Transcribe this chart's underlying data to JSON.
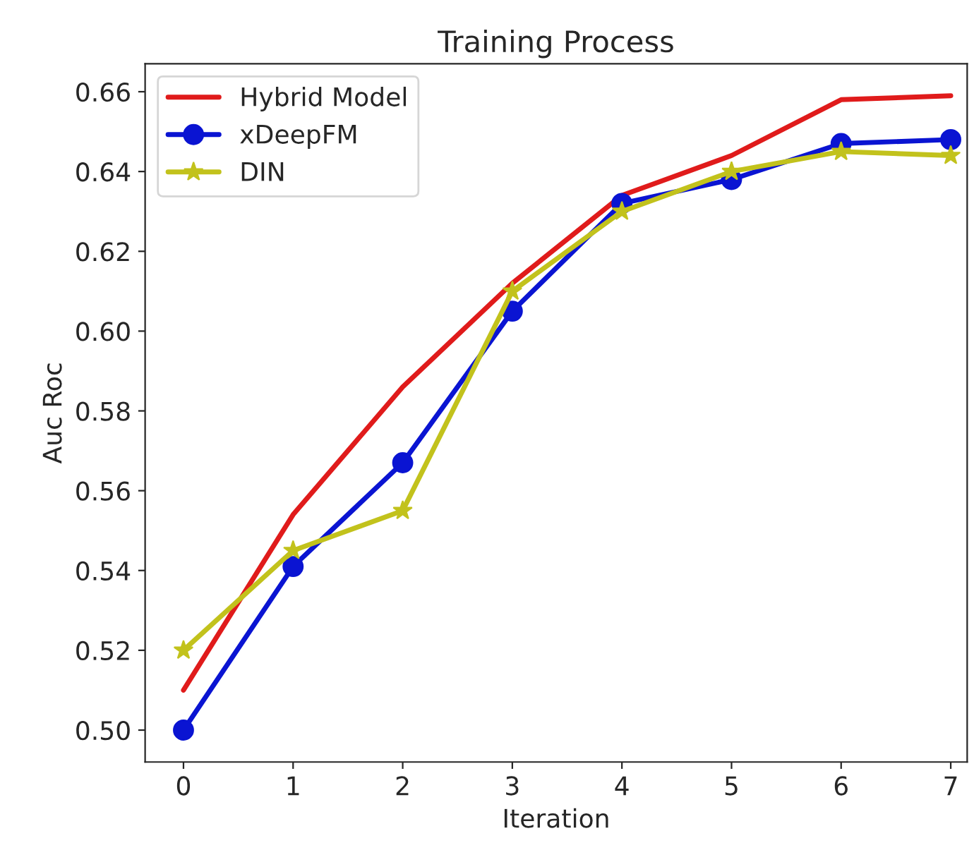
{
  "chart_data": {
    "type": "line",
    "title": "Training Process",
    "xlabel": "Iteration",
    "ylabel": "Auc Roc",
    "x": [
      0,
      1,
      2,
      3,
      4,
      5,
      6,
      7
    ],
    "series": [
      {
        "name": "Hybrid Model",
        "color": "#e01b1b",
        "marker": "none",
        "values": [
          0.51,
          0.554,
          0.586,
          0.612,
          0.634,
          0.644,
          0.658,
          0.659
        ]
      },
      {
        "name": "xDeepFM",
        "color": "#0a14d2",
        "marker": "circle",
        "values": [
          0.5,
          0.541,
          0.567,
          0.605,
          0.632,
          0.638,
          0.647,
          0.648
        ]
      },
      {
        "name": "DIN",
        "color": "#c2c21c",
        "marker": "star",
        "values": [
          0.52,
          0.545,
          0.555,
          0.61,
          0.63,
          0.64,
          0.645,
          0.644
        ]
      }
    ],
    "xlim": [
      -0.35,
      7.15
    ],
    "ylim": [
      0.492,
      0.667
    ],
    "xticks": [
      0,
      1,
      2,
      3,
      4,
      5,
      6,
      7
    ],
    "yticks": [
      {
        "value": 0.5,
        "label": "0.50"
      },
      {
        "value": 0.52,
        "label": "0.52"
      },
      {
        "value": 0.54,
        "label": "0.54"
      },
      {
        "value": 0.56,
        "label": "0.56"
      },
      {
        "value": 0.58,
        "label": "0.58"
      },
      {
        "value": 0.6,
        "label": "0.60"
      },
      {
        "value": 0.62,
        "label": "0.62"
      },
      {
        "value": 0.64,
        "label": "0.64"
      },
      {
        "value": 0.66,
        "label": "0.66"
      }
    ],
    "legend": "top left",
    "grid": false,
    "line_style": "solid"
  }
}
